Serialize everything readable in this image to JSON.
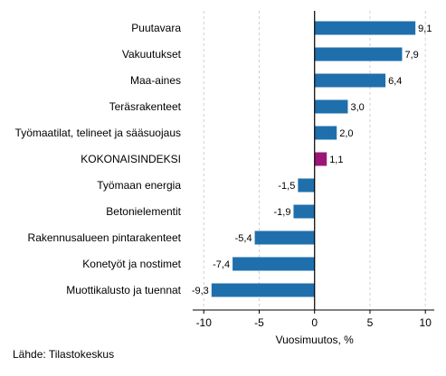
{
  "chart_data": {
    "type": "bar",
    "orientation": "horizontal",
    "categories": [
      "Puutavara",
      "Vakuutukset",
      "Maa-aines",
      "Teräsrakenteet",
      "Työmaatilat, telineet ja sääsuojaus",
      "KOKONAISINDEKSI",
      "Työmaan energia",
      "Betonielementit",
      "Rakennusalueen pintarakenteet",
      "Konetyöt ja nostimet",
      "Muottikalusto ja tuennat"
    ],
    "values": [
      9.1,
      7.9,
      6.4,
      3.0,
      2.0,
      1.1,
      -1.5,
      -1.9,
      -5.4,
      -7.4,
      -9.3
    ],
    "value_labels": [
      "9,1",
      "7,9",
      "6,4",
      "3,0",
      "2,0",
      "1,1",
      "-1,5",
      "-1,9",
      "-5,4",
      "-7,4",
      "-9,3"
    ],
    "highlight_index": 5,
    "colors": {
      "bar": "#1f6fad",
      "highlight": "#9b1677",
      "grid": "#d0d0d0",
      "axis": "#000000"
    },
    "xlim": [
      -11,
      10.8
    ],
    "xticks": [
      -10,
      -5,
      0,
      5,
      10
    ],
    "xtick_labels": [
      "-10",
      "-5",
      "0",
      "5",
      "10"
    ],
    "xlabel": "Vuosimuutos, %",
    "grid": true
  },
  "source": "Lähde: Tilastokeskus"
}
